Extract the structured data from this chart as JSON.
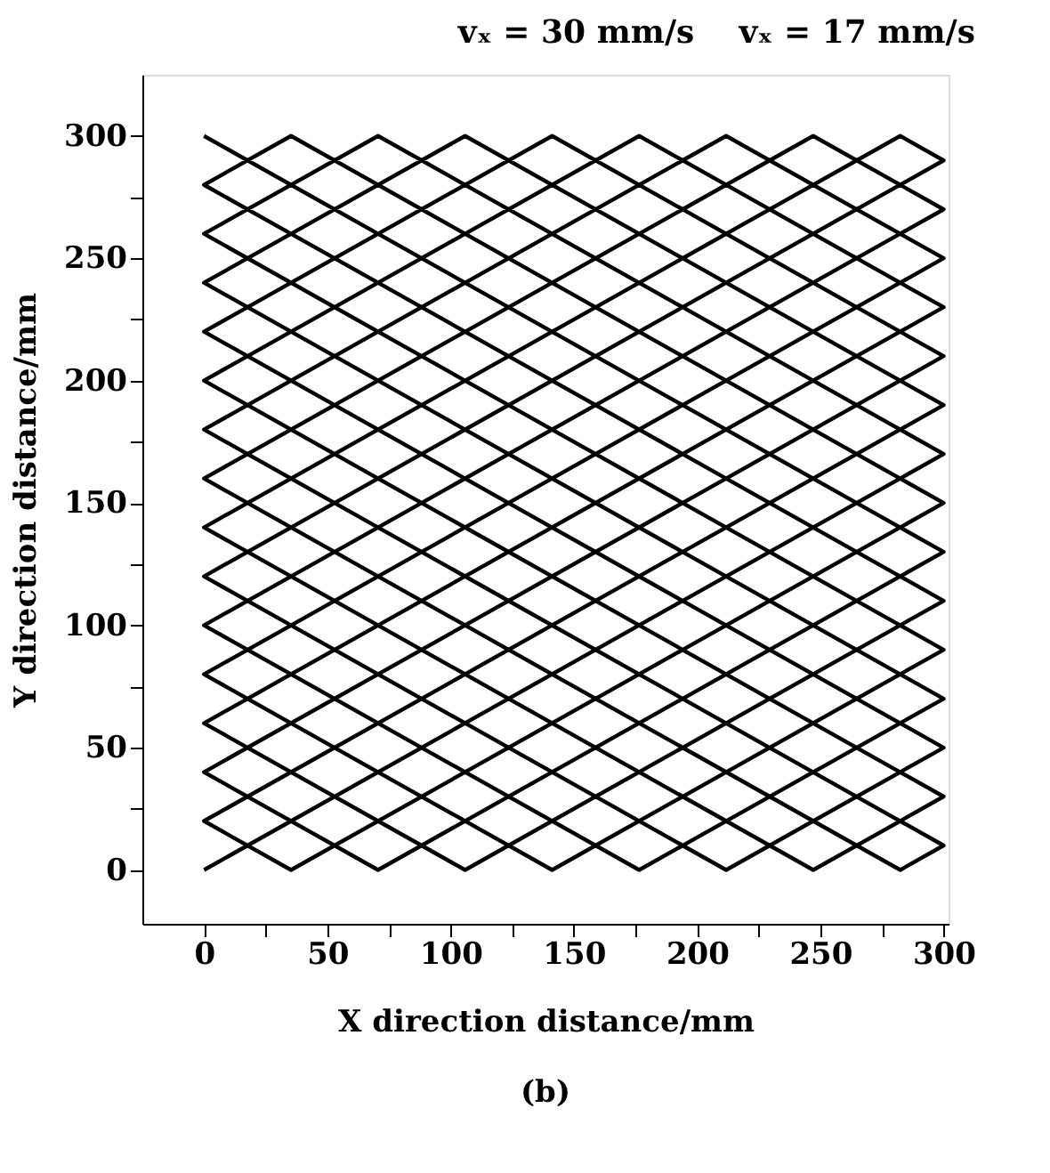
{
  "chart_data": {
    "type": "line",
    "title": "vₓ = 30 mm/s    vₓ = 17 mm/s",
    "xlabel": "X direction distance/mm",
    "ylabel": "Y direction distance/mm",
    "annotations": [
      "(b)"
    ],
    "series": [
      {
        "color": "#000000",
        "x": [
          0,
          300,
          70.6,
          0,
          300,
          141.2,
          0,
          300,
          211.8,
          0,
          300,
          282.4,
          0,
          247.1,
          300,
          0,
          176.5,
          300,
          0,
          105.9,
          300,
          0,
          35.3,
          300,
          35.3,
          0,
          300,
          105.9,
          0,
          300,
          176.5,
          0,
          300,
          247.1,
          0,
          282.4,
          300,
          0,
          211.8,
          300,
          0,
          141.2,
          300,
          0,
          70.6,
          300,
          0
        ],
        "values": [
          0,
          170,
          300,
          260,
          90,
          0,
          80,
          250,
          300,
          180,
          10,
          0,
          160,
          300,
          270,
          100,
          0,
          70,
          240,
          300,
          190,
          20,
          0,
          150,
          300,
          280,
          110,
          0,
          60,
          230,
          300,
          200,
          30,
          0,
          140,
          300,
          290,
          120,
          0,
          50,
          220,
          300,
          210,
          40,
          0,
          130,
          300
        ]
      }
    ],
    "xlim": [
      -25,
      302
    ],
    "ylim": [
      -22,
      325
    ],
    "xticks": [
      0,
      {
        "value": 25,
        "label": null
      },
      50,
      {
        "value": 75,
        "label": null
      },
      100,
      {
        "value": 125,
        "label": null
      },
      150,
      {
        "value": 175,
        "label": null
      },
      200,
      {
        "value": 225,
        "label": null
      },
      250,
      {
        "value": 275,
        "label": null
      },
      300
    ],
    "yticks": [
      0,
      {
        "value": 25,
        "label": null
      },
      50,
      {
        "value": 75,
        "label": null
      },
      100,
      {
        "value": 125,
        "label": null
      },
      150,
      {
        "value": 175,
        "label": null
      },
      200,
      {
        "value": 225,
        "label": null
      },
      250,
      {
        "value": 275,
        "label": null
      },
      300
    ],
    "grid": false,
    "marker": "none",
    "line_style": "solid"
  }
}
